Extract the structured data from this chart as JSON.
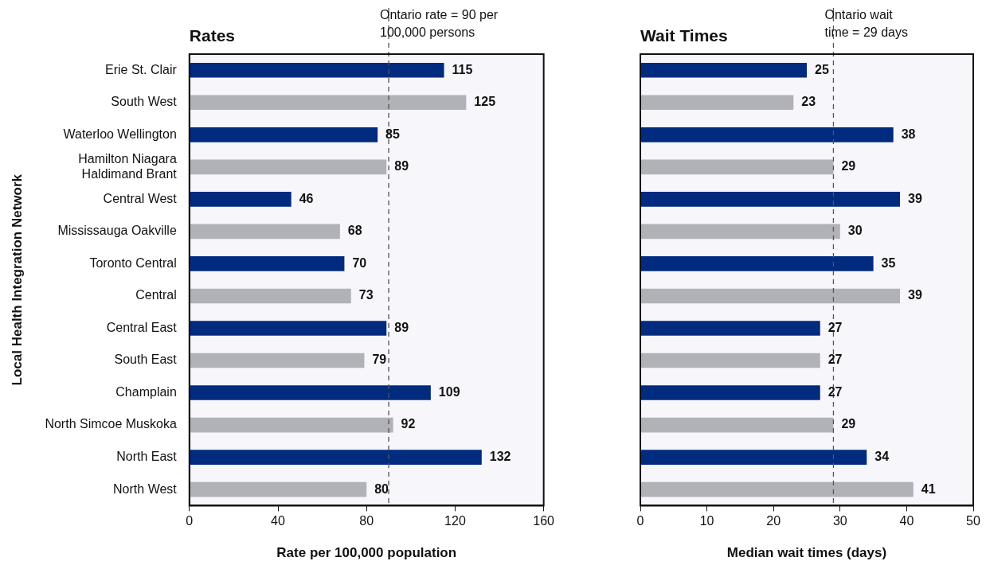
{
  "chart_data": [
    {
      "type": "bar",
      "orientation": "horizontal",
      "title": "Rates",
      "xlabel": "Rate per 100,000 population",
      "ylabel": "Local Health Integration Network",
      "categories": [
        "Erie St. Clair",
        "South West",
        "Waterloo Wellington",
        "Hamilton Niagara Haldimand Brant",
        "Central West",
        "Mississauga Oakville",
        "Toronto Central",
        "Central",
        "Central East",
        "South East",
        "Champlain",
        "North Simcoe Muskoka",
        "North East",
        "North West"
      ],
      "values": [
        115,
        125,
        85,
        89,
        46,
        68,
        70,
        73,
        89,
        79,
        109,
        92,
        132,
        80
      ],
      "colors": [
        "#002b7f",
        "#b1b1b8",
        "#002b7f",
        "#b1b1b8",
        "#002b7f",
        "#b1b1b8",
        "#002b7f",
        "#b1b1b8",
        "#002b7f",
        "#b1b1b8",
        "#002b7f",
        "#b1b1b8",
        "#002b7f",
        "#b1b1b8"
      ],
      "xlim": [
        0,
        160
      ],
      "xticks": [
        0,
        40,
        80,
        120,
        160
      ],
      "ref_lines": [
        {
          "axis": "x",
          "value": 90,
          "label": "Ontario rate = 90 per 100,000 persons",
          "color": "#555555",
          "line_style": "dashed"
        }
      ],
      "data_labels": true,
      "grid": false
    },
    {
      "type": "bar",
      "orientation": "horizontal",
      "title": "Wait Times",
      "xlabel": "Median wait times (days)",
      "categories": [
        null,
        null,
        null,
        null,
        null,
        null,
        null,
        null,
        null,
        null,
        null,
        null,
        null,
        null
      ],
      "values": [
        25,
        23,
        38,
        29,
        39,
        30,
        35,
        39,
        27,
        27,
        27,
        29,
        34,
        41
      ],
      "colors": [
        "#002b7f",
        "#b1b1b8",
        "#002b7f",
        "#b1b1b8",
        "#002b7f",
        "#b1b1b8",
        "#002b7f",
        "#b1b1b8",
        "#002b7f",
        "#b1b1b8",
        "#002b7f",
        "#b1b1b8",
        "#002b7f",
        "#b1b1b8"
      ],
      "xlim": [
        0,
        50
      ],
      "xticks": [
        0,
        10,
        20,
        30,
        40,
        50
      ],
      "ref_lines": [
        {
          "axis": "x",
          "value": 29,
          "label": "Ontario wait time = 29 days",
          "color": "#555555",
          "line_style": "dashed"
        }
      ],
      "data_labels": true,
      "grid": false,
      "tick_labels": "x"
    }
  ]
}
